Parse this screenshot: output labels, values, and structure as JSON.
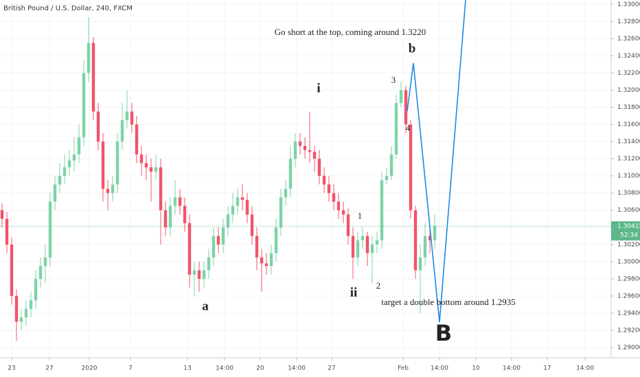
{
  "chart_data": {
    "type": "candlestick",
    "title": "British Pound / U.S. Dollar, 240, FXCM",
    "up_color": "#7dd3a8",
    "down_color": "#f0546a",
    "grid": true,
    "ylim": [
      1.2888,
      1.3305
    ],
    "xlim": [
      -0.43,
      126.71
    ],
    "yticks": [
      {
        "value": 1.29,
        "label": "1.29000"
      },
      {
        "value": 1.292,
        "label": "1.29200"
      },
      {
        "value": 1.294,
        "label": "1.29400"
      },
      {
        "value": 1.296,
        "label": "1.29600"
      },
      {
        "value": 1.298,
        "label": "1.29800"
      },
      {
        "value": 1.3,
        "label": "1.30000"
      },
      {
        "value": 1.302,
        "label": "1.30200"
      },
      {
        "value": 1.304,
        "label": "1.30400"
      },
      {
        "value": 1.306,
        "label": "1.30600"
      },
      {
        "value": 1.308,
        "label": "1.30800"
      },
      {
        "value": 1.31,
        "label": "1.31000"
      },
      {
        "value": 1.312,
        "label": "1.31200"
      },
      {
        "value": 1.314,
        "label": "1.31400"
      },
      {
        "value": 1.316,
        "label": "1.31600"
      },
      {
        "value": 1.318,
        "label": "1.31800"
      },
      {
        "value": 1.32,
        "label": "1.32000"
      },
      {
        "value": 1.322,
        "label": "1.32200"
      },
      {
        "value": 1.324,
        "label": "1.32400"
      },
      {
        "value": 1.326,
        "label": "1.32600"
      },
      {
        "value": 1.328,
        "label": "1.32800"
      },
      {
        "value": 1.33,
        "label": "1.33000"
      }
    ],
    "xticks": [
      {
        "value": 2,
        "label": "23"
      },
      {
        "value": 9.86,
        "label": "27"
      },
      {
        "value": 18.14,
        "label": "2020"
      },
      {
        "value": 26.71,
        "label": "7"
      },
      {
        "value": 38.57,
        "label": "13"
      },
      {
        "value": 46.29,
        "label": "14:00"
      },
      {
        "value": 53.71,
        "label": "20"
      },
      {
        "value": 61.29,
        "label": "14:00"
      },
      {
        "value": 68.57,
        "label": "27"
      },
      {
        "value": 83.43,
        "label": "Feb"
      },
      {
        "value": 91,
        "label": "14:00"
      },
      {
        "value": 98.57,
        "label": "10"
      },
      {
        "value": 106,
        "label": "14:00"
      },
      {
        "value": 113.43,
        "label": "17"
      },
      {
        "value": 121.29,
        "label": "14:00"
      }
    ],
    "last_price": {
      "value": 1.30415,
      "label": "1.30415"
    },
    "countdown": "52:34",
    "annotations": [
      "Go short at the top, coming around 1.3220",
      "b",
      "i",
      "3",
      "4",
      "1",
      "2",
      "ii",
      "a",
      "target a double bottom around 1.2935",
      "B"
    ],
    "ohlc": [
      [
        1.306,
        1.3068,
        1.304,
        1.305
      ],
      [
        1.305,
        1.3058,
        1.301,
        1.302
      ],
      [
        1.302,
        1.3028,
        1.295,
        1.296
      ],
      [
        1.296,
        1.2968,
        1.2908,
        1.293
      ],
      [
        1.293,
        1.2945,
        1.292,
        1.2935
      ],
      [
        1.2935,
        1.2955,
        1.2925,
        1.2945
      ],
      [
        1.2945,
        1.2965,
        1.2935,
        1.2955
      ],
      [
        1.2955,
        1.299,
        1.2945,
        1.298
      ],
      [
        1.298,
        1.3005,
        1.297,
        1.2995
      ],
      [
        1.2995,
        1.302,
        1.2975,
        1.3005
      ],
      [
        1.3005,
        1.308,
        1.2995,
        1.307
      ],
      [
        1.307,
        1.31,
        1.306,
        1.309
      ],
      [
        1.309,
        1.3115,
        1.308,
        1.31
      ],
      [
        1.31,
        1.3125,
        1.309,
        1.311
      ],
      [
        1.311,
        1.313,
        1.31,
        1.3118
      ],
      [
        1.3118,
        1.3145,
        1.3105,
        1.3125
      ],
      [
        1.3125,
        1.316,
        1.3115,
        1.3145
      ],
      [
        1.3145,
        1.3235,
        1.3135,
        1.322
      ],
      [
        1.322,
        1.3285,
        1.321,
        1.3255
      ],
      [
        1.3255,
        1.3262,
        1.3165,
        1.3175
      ],
      [
        1.3175,
        1.3185,
        1.313,
        1.314
      ],
      [
        1.314,
        1.315,
        1.307,
        1.3085
      ],
      [
        1.3085,
        1.3095,
        1.306,
        1.308
      ],
      [
        1.308,
        1.31,
        1.307,
        1.309
      ],
      [
        1.309,
        1.315,
        1.308,
        1.314
      ],
      [
        1.314,
        1.3185,
        1.313,
        1.3165
      ],
      [
        1.3165,
        1.32,
        1.3155,
        1.3175
      ],
      [
        1.3175,
        1.3185,
        1.315,
        1.316
      ],
      [
        1.316,
        1.317,
        1.3115,
        1.3125
      ],
      [
        1.3125,
        1.3135,
        1.31,
        1.3115
      ],
      [
        1.3115,
        1.3125,
        1.3095,
        1.311
      ],
      [
        1.311,
        1.312,
        1.307,
        1.3105
      ],
      [
        1.3105,
        1.3125,
        1.3095,
        1.311
      ],
      [
        1.311,
        1.312,
        1.302,
        1.306
      ],
      [
        1.306,
        1.307,
        1.303,
        1.304
      ],
      [
        1.304,
        1.3075,
        1.303,
        1.3065
      ],
      [
        1.3065,
        1.3095,
        1.3055,
        1.3075
      ],
      [
        1.3075,
        1.3085,
        1.3055,
        1.3065
      ],
      [
        1.3065,
        1.3075,
        1.3035,
        1.3045
      ],
      [
        1.3045,
        1.3055,
        1.297,
        1.2985
      ],
      [
        1.2985,
        1.3,
        1.296,
        1.299
      ],
      [
        1.299,
        1.3,
        1.2965,
        1.298
      ],
      [
        1.298,
        1.3,
        1.297,
        1.299
      ],
      [
        1.299,
        1.3015,
        1.298,
        1.3005
      ],
      [
        1.3005,
        1.304,
        1.2995,
        1.303
      ],
      [
        1.303,
        1.304,
        1.301,
        1.302
      ],
      [
        1.302,
        1.305,
        1.301,
        1.304
      ],
      [
        1.304,
        1.3065,
        1.303,
        1.3055
      ],
      [
        1.3055,
        1.308,
        1.3045,
        1.3065
      ],
      [
        1.3065,
        1.3085,
        1.3055,
        1.3075
      ],
      [
        1.3075,
        1.309,
        1.306,
        1.3072
      ],
      [
        1.3072,
        1.308,
        1.3045,
        1.3055
      ],
      [
        1.3055,
        1.3065,
        1.302,
        1.303
      ],
      [
        1.303,
        1.304,
        1.299,
        1.3005
      ],
      [
        1.3005,
        1.3015,
        1.2965,
        1.2998
      ],
      [
        1.2998,
        1.301,
        1.2985,
        1.2995
      ],
      [
        1.2995,
        1.302,
        1.2985,
        1.301
      ],
      [
        1.301,
        1.305,
        1.3,
        1.304
      ],
      [
        1.304,
        1.3085,
        1.303,
        1.3075
      ],
      [
        1.3075,
        1.3095,
        1.3065,
        1.3085
      ],
      [
        1.3085,
        1.3135,
        1.3075,
        1.312
      ],
      [
        1.312,
        1.315,
        1.311,
        1.314
      ],
      [
        1.314,
        1.315,
        1.3125,
        1.3135
      ],
      [
        1.3135,
        1.3145,
        1.312,
        1.313
      ],
      [
        1.313,
        1.3175,
        1.3115,
        1.3128
      ],
      [
        1.3128,
        1.3135,
        1.3105,
        1.312
      ],
      [
        1.312,
        1.313,
        1.309,
        1.31
      ],
      [
        1.31,
        1.311,
        1.308,
        1.309
      ],
      [
        1.309,
        1.31,
        1.307,
        1.308
      ],
      [
        1.308,
        1.309,
        1.306,
        1.307
      ],
      [
        1.307,
        1.308,
        1.305,
        1.306
      ],
      [
        1.306,
        1.307,
        1.3045,
        1.3055
      ],
      [
        1.3055,
        1.3062,
        1.302,
        1.303
      ],
      [
        1.303,
        1.304,
        1.298,
        1.3005
      ],
      [
        1.3005,
        1.3035,
        1.2995,
        1.3025
      ],
      [
        1.3025,
        1.304,
        1.3015,
        1.303
      ],
      [
        1.303,
        1.3035,
        1.2995,
        1.301
      ],
      [
        1.301,
        1.303,
        1.2975,
        1.302
      ],
      [
        1.302,
        1.3035,
        1.301,
        1.3025
      ],
      [
        1.3025,
        1.3105,
        1.3015,
        1.3095
      ],
      [
        1.3095,
        1.311,
        1.309,
        1.31
      ],
      [
        1.31,
        1.3135,
        1.3095,
        1.3125
      ],
      [
        1.3125,
        1.3195,
        1.312,
        1.3185
      ],
      [
        1.3185,
        1.321,
        1.318,
        1.32
      ],
      [
        1.32,
        1.3205,
        1.315,
        1.316
      ],
      [
        1.316,
        1.3165,
        1.305,
        1.306
      ],
      [
        1.306,
        1.3065,
        1.298,
        1.299
      ],
      [
        1.299,
        1.302,
        1.294,
        1.3005
      ],
      [
        1.3005,
        1.3045,
        1.2995,
        1.303
      ],
      [
        1.303,
        1.304,
        1.301,
        1.3025
      ],
      [
        1.3025,
        1.3055,
        1.3015,
        1.3042
      ]
    ]
  }
}
